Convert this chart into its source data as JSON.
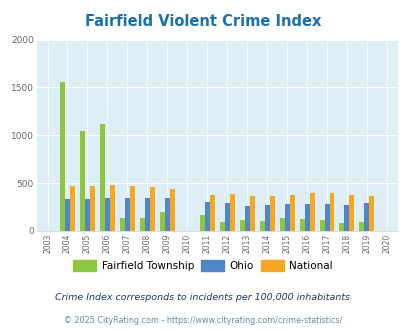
{
  "title": "Fairfield Violent Crime Index",
  "title_color": "#1a6faf",
  "years": [
    2003,
    2004,
    2005,
    2006,
    2007,
    2008,
    2009,
    2010,
    2011,
    2012,
    2013,
    2014,
    2015,
    2016,
    2017,
    2018,
    2019,
    2020
  ],
  "fairfield": [
    0,
    1560,
    1040,
    1115,
    140,
    140,
    195,
    0,
    170,
    90,
    120,
    100,
    140,
    125,
    110,
    80,
    95,
    0
  ],
  "ohio": [
    0,
    330,
    335,
    340,
    340,
    340,
    340,
    0,
    305,
    290,
    265,
    275,
    285,
    285,
    285,
    275,
    295,
    0
  ],
  "national": [
    0,
    470,
    470,
    480,
    465,
    455,
    435,
    0,
    375,
    385,
    370,
    365,
    375,
    395,
    400,
    380,
    365,
    0
  ],
  "fairfield_color": "#8dc63f",
  "ohio_color": "#4d87c7",
  "national_color": "#f5a623",
  "plot_bg": "#ddeef6",
  "ylim": [
    0,
    2000
  ],
  "yticks": [
    0,
    500,
    1000,
    1500,
    2000
  ],
  "bar_width": 0.25,
  "legend_labels": [
    "Fairfield Township",
    "Ohio",
    "National"
  ],
  "footnote1": "Crime Index corresponds to incidents per 100,000 inhabitants",
  "footnote2": "© 2025 CityRating.com - https://www.cityrating.com/crime-statistics/",
  "footnote1_color": "#1a3a5c",
  "footnote2_color": "#6688aa"
}
